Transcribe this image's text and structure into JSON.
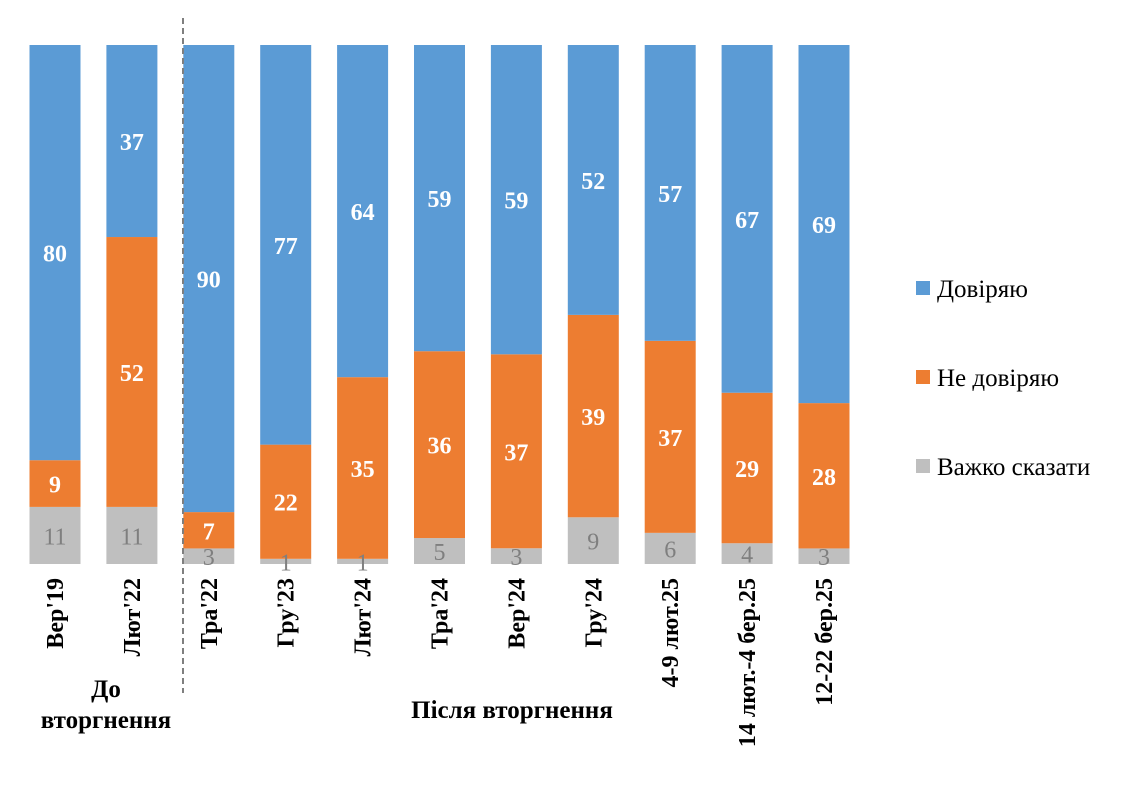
{
  "chart_data": {
    "type": "bar",
    "stacked": true,
    "percent_stacked": true,
    "categories": [
      "Вер'19",
      "Лют'22",
      "Тра'22",
      "Гру'23",
      "Лют'24",
      "Тра'24",
      "Вер'24",
      "Гру'24",
      "4-9 лют.25",
      "14 лют.-4 бер.25",
      "12-22 бер.25"
    ],
    "series": [
      {
        "name": "Довіряю",
        "color": "#5b9bd5",
        "values": [
          80,
          37,
          90,
          77,
          64,
          59,
          59,
          52,
          57,
          67,
          69
        ]
      },
      {
        "name": "Не довіряю",
        "color": "#ed7d31",
        "values": [
          9,
          52,
          7,
          22,
          35,
          36,
          37,
          39,
          37,
          29,
          28
        ]
      },
      {
        "name": "Важко сказати",
        "color": "#bfbfbf",
        "values": [
          11,
          11,
          3,
          1,
          1,
          5,
          3,
          9,
          6,
          4,
          3
        ]
      }
    ],
    "groups": [
      {
        "label": "До вторгнення",
        "categories": [
          "Вер'19",
          "Лют'22"
        ]
      },
      {
        "label": "Після вторгнення",
        "categories": [
          "Тра'22",
          "Гру'23",
          "Лют'24",
          "Тра'24",
          "Вер'24",
          "Гру'24",
          "4-9 лют.25",
          "14 лют.-4 бер.25",
          "12-22 бер.25"
        ]
      }
    ],
    "legend": {
      "position": "right"
    },
    "title": "",
    "xlabel": "",
    "ylabel": ""
  },
  "group_labels": {
    "before_line1": "До",
    "before_line2": "вторгнення",
    "after": "Після вторгнення"
  }
}
